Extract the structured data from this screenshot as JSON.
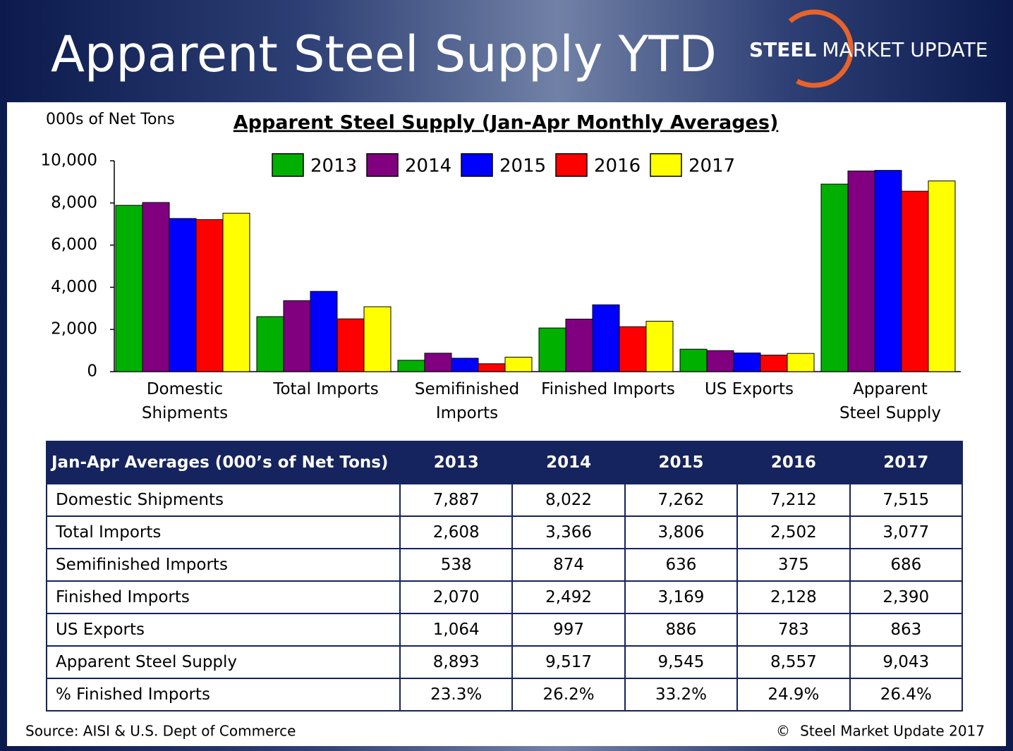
{
  "header": {
    "title": "Apparent Steel Supply YTD",
    "logo_bold": "STEEL",
    "logo_rest": "MARKET UPDATE"
  },
  "chart_data": {
    "type": "bar",
    "title": "Apparent Steel Supply (Jan-Apr Monthly Averages)",
    "y_label": "000s of Net Tons",
    "categories": [
      "Domestic\nShipments",
      "Total Imports",
      "Semifinished\nImports",
      "Finished Imports",
      "US Exports",
      "Apparent\nSteel Supply"
    ],
    "series": [
      {
        "name": "2013",
        "color": "#00b000",
        "values": [
          7887,
          2608,
          538,
          2070,
          1064,
          8893
        ]
      },
      {
        "name": "2014",
        "color": "#800080",
        "values": [
          8022,
          3366,
          874,
          2492,
          997,
          9517
        ]
      },
      {
        "name": "2015",
        "color": "#0000ff",
        "values": [
          7262,
          3806,
          636,
          3169,
          886,
          9545
        ]
      },
      {
        "name": "2016",
        "color": "#ff0000",
        "values": [
          7212,
          2502,
          375,
          2128,
          783,
          8557
        ]
      },
      {
        "name": "2017",
        "color": "#ffff00",
        "values": [
          7515,
          3077,
          686,
          2390,
          863,
          9043
        ]
      }
    ],
    "ylim": [
      0,
      10000
    ],
    "yticks": [
      0,
      {
        "value": 2000,
        "label": "2,000"
      },
      {
        "value": 4000,
        "label": "4,000"
      },
      {
        "value": 6000,
        "label": "6,000"
      },
      {
        "value": 8000,
        "label": "8,000"
      },
      {
        "value": 10000,
        "label": "10,000"
      }
    ],
    "legend": "top"
  },
  "table": {
    "header": [
      "Jan-Apr Averages (000’s of Net Tons)",
      "2013",
      "2014",
      "2015",
      "2016",
      "2017"
    ],
    "rows": [
      [
        "Domestic Shipments",
        "7,887",
        "8,022",
        "7,262",
        "7,212",
        "7,515"
      ],
      [
        "Total Imports",
        "2,608",
        "3,366",
        "3,806",
        "2,502",
        "3,077"
      ],
      [
        "Semifinished Imports",
        "538",
        "874",
        "636",
        "375",
        "686"
      ],
      [
        "Finished Imports",
        "2,070",
        "2,492",
        "3,169",
        "2,128",
        "2,390"
      ],
      [
        "US Exports",
        "1,064",
        "997",
        "886",
        "783",
        "863"
      ],
      [
        "Apparent Steel Supply",
        "8,893",
        "9,517",
        "9,545",
        "8,557",
        "9,043"
      ],
      [
        "% Finished Imports",
        "23.3%",
        "26.2%",
        "33.2%",
        "24.9%",
        "26.4%"
      ]
    ]
  },
  "footer": {
    "source": "Source:  AISI & U.S. Dept of Commerce",
    "copyright_symbol": "©",
    "copyright": "Steel Market Update 2017"
  }
}
